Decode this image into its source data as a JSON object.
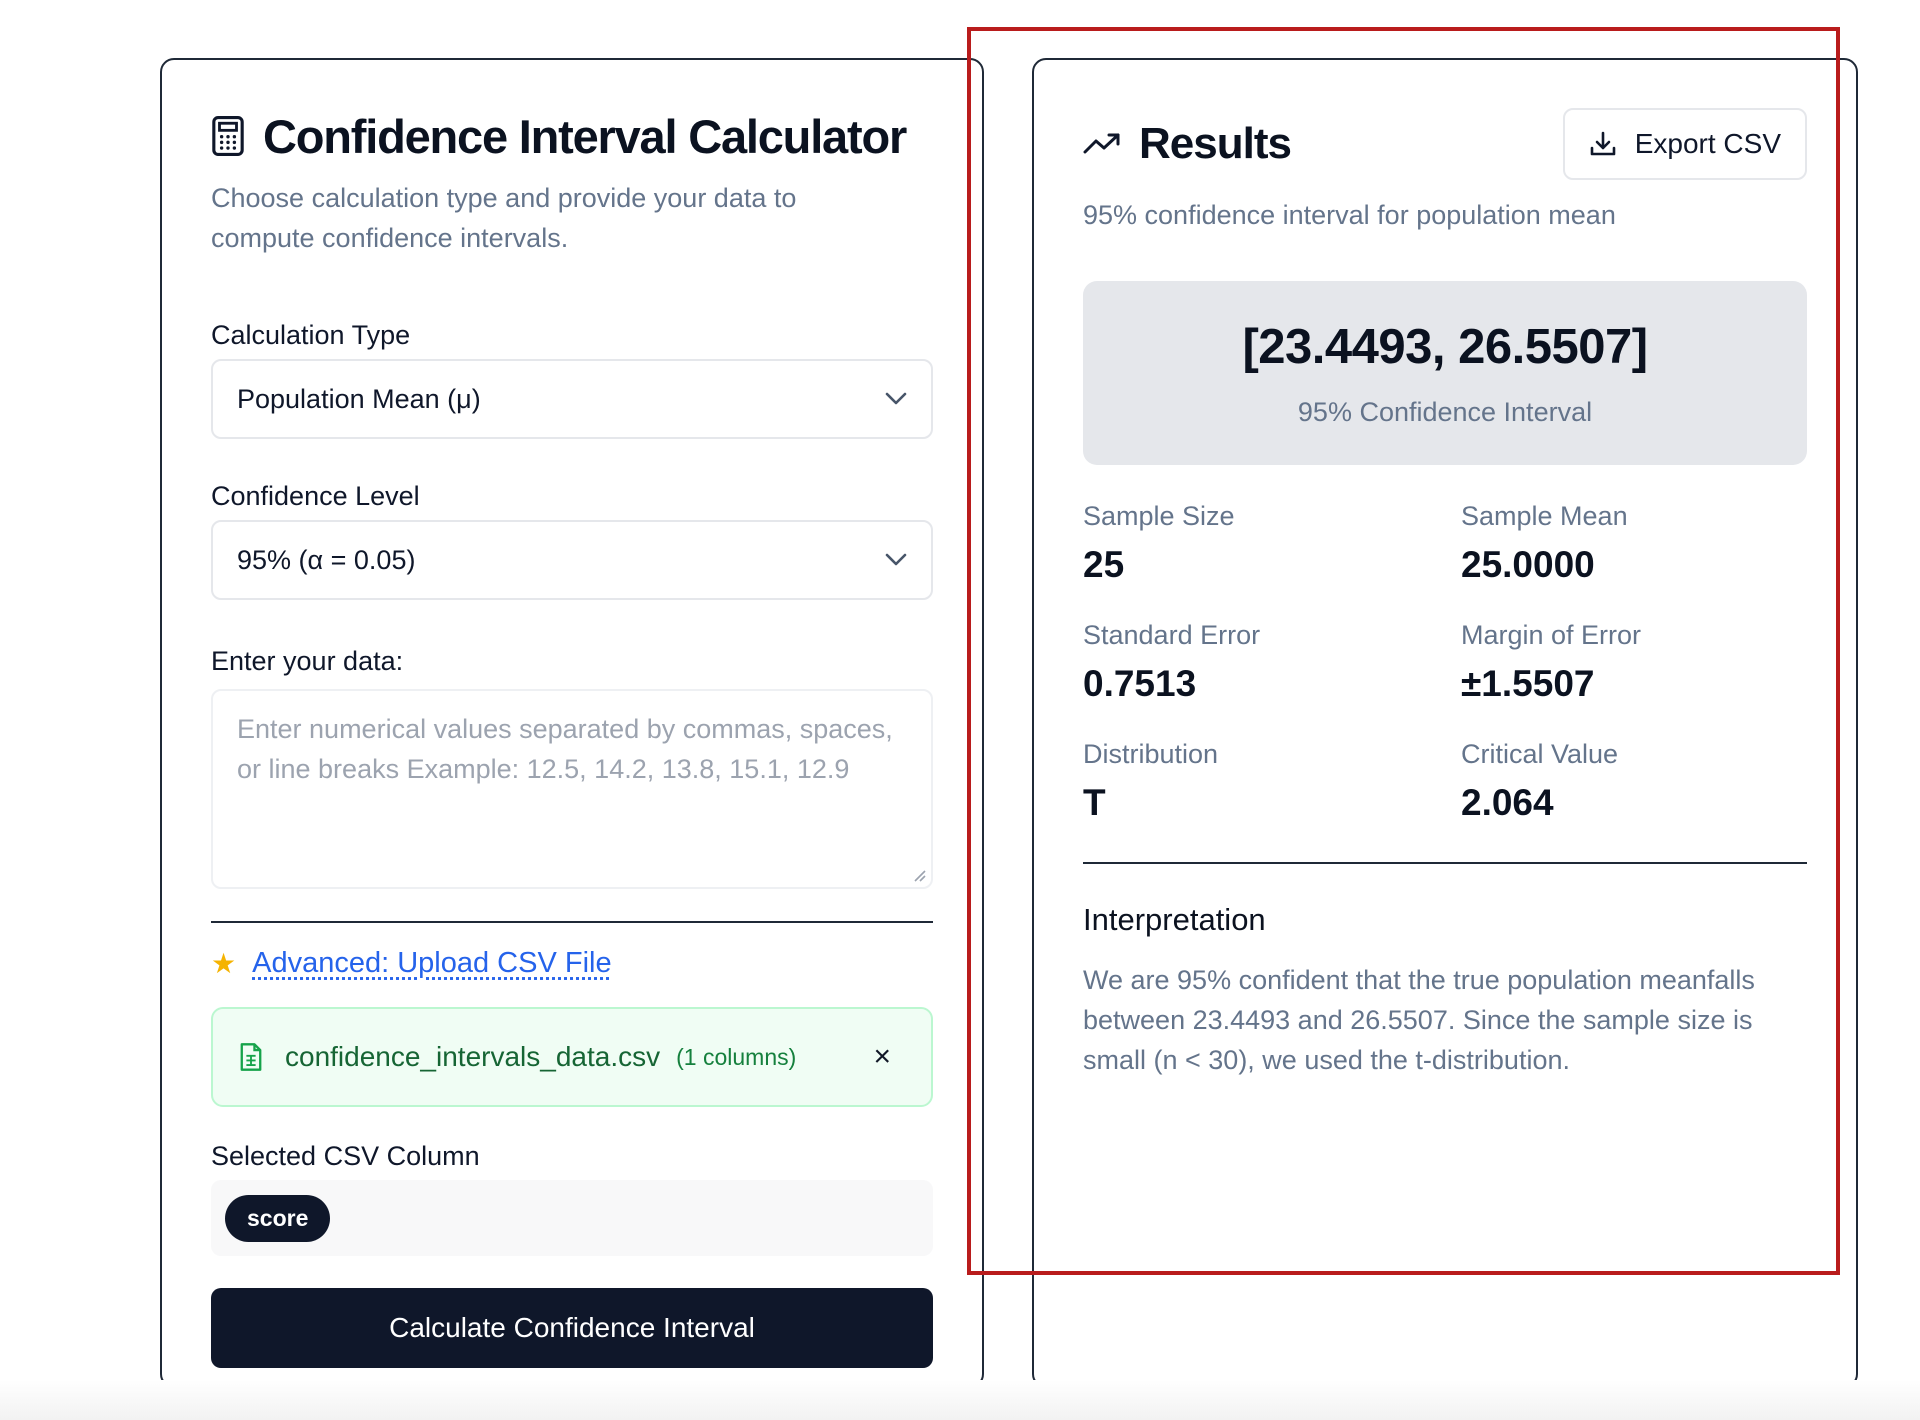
{
  "calculator": {
    "title": "Confidence Interval Calculator",
    "subtitle": "Choose calculation type and provide your data to compute confidence intervals.",
    "calc_type_label": "Calculation Type",
    "calc_type_value": "Population Mean (μ)",
    "confidence_label": "Confidence Level",
    "confidence_value": "95% (α = 0.05)",
    "data_label": "Enter your data:",
    "data_placeholder": "Enter numerical values separated by commas, spaces, or line breaks Example: 12.5, 14.2, 13.8, 15.1, 12.9",
    "advanced_link": "Advanced: Upload CSV File",
    "file_name": "confidence_intervals_data.csv",
    "file_columns": "(1 columns)",
    "close_glyph": "×",
    "selected_column_label": "Selected CSV Column",
    "selected_column_chip": "score",
    "calculate_button": "Calculate Confidence Interval"
  },
  "results": {
    "title": "Results",
    "export_button": "Export CSV",
    "subtitle": "95% confidence interval for population mean",
    "interval": "[23.4493, 26.5507]",
    "interval_label": "95% Confidence Interval",
    "stats": [
      {
        "label": "Sample Size",
        "value": "25"
      },
      {
        "label": "Sample Mean",
        "value": "25.0000"
      },
      {
        "label": "Standard Error",
        "value": "0.7513"
      },
      {
        "label": "Margin of Error",
        "value": "±1.5507"
      },
      {
        "label": "Distribution",
        "value": "T"
      },
      {
        "label": "Critical Value",
        "value": "2.064"
      }
    ],
    "interpretation_title": "Interpretation",
    "interpretation_text": "We are 95% confident that the true population meanfalls between 23.4493 and 26.5507. Since the sample size is small (n < 30), we used the t-distribution."
  },
  "icons": {
    "calculator": "calculator-icon",
    "trend": "trending-up-icon",
    "download": "download-icon",
    "file": "file-spreadsheet-icon",
    "star": "star-icon",
    "chevron": "chevron-down-icon"
  },
  "colors": {
    "primary": "#0f172a",
    "muted": "#64748b",
    "link": "#2563eb",
    "success_bg": "#f0fdf4",
    "success_text": "#166534",
    "highlight": "#b91c1c"
  }
}
